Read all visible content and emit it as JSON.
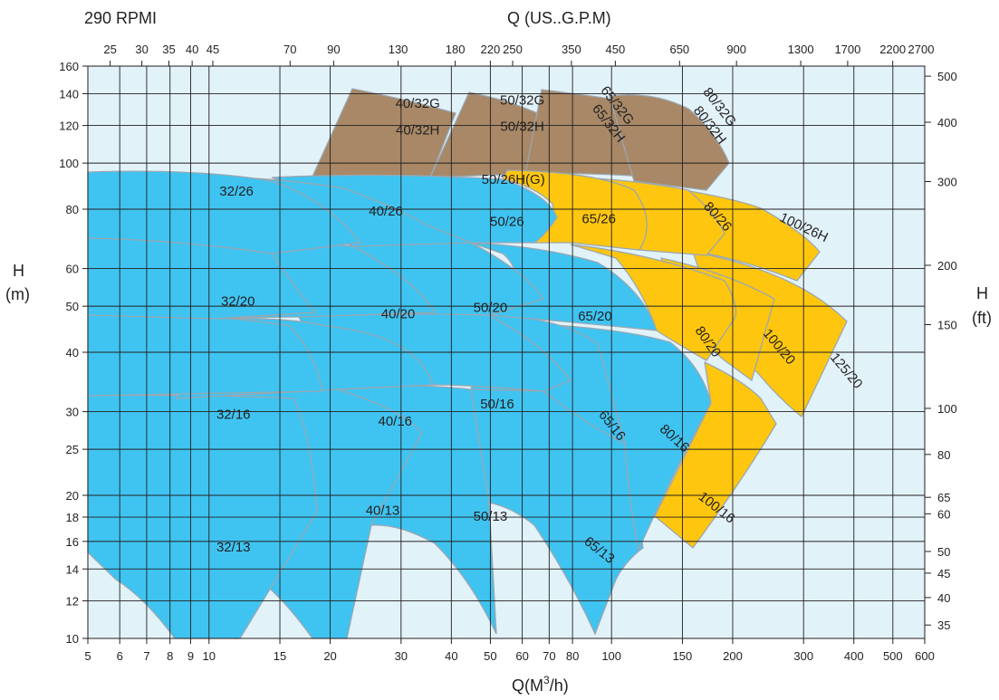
{
  "header": {
    "speed_label": "290 RPMI",
    "top_axis_title": "Q (US..G.P.M)"
  },
  "axes": {
    "left_unit": "H",
    "left_unit_sub": "(m)",
    "right_unit": "H",
    "right_unit_sub": "(ft)",
    "bottom_title_prefix": "Q(M",
    "bottom_title_sup": "3",
    "bottom_title_suffix": "/h)"
  },
  "colors": {
    "plot_bg": "#e2f2f9",
    "grid": "#231f20",
    "blue_zone": "#3fc4f1",
    "yellow_zone": "#fec60f",
    "brown_zone": "#a88866",
    "zone_edge": "#9aa7b2"
  },
  "chart_data": {
    "type": "area",
    "title": "290 RPMI",
    "xlabel": "Q(M3/h)",
    "ylabel": "H (m)",
    "x_scale": "log",
    "y_scale": "log",
    "xlim": [
      5,
      600
    ],
    "ylim": [
      10,
      160
    ],
    "x_ticks": [
      5,
      6,
      7,
      8,
      9,
      10,
      15,
      20,
      30,
      40,
      50,
      60,
      70,
      80,
      100,
      150,
      200,
      300,
      400,
      500,
      600
    ],
    "y_ticks": [
      10,
      12,
      14,
      16,
      18,
      20,
      25,
      30,
      40,
      50,
      60,
      80,
      100,
      120,
      140,
      160
    ],
    "top_axis": {
      "label": "Q (US..G.P.M)",
      "ticks": [
        {
          "label": "25",
          "m3h": 5.68
        },
        {
          "label": "30",
          "m3h": 6.81
        },
        {
          "label": "35",
          "m3h": 7.95
        },
        {
          "label": "40",
          "m3h": 9.08
        },
        {
          "label": "45",
          "m3h": 10.22
        },
        {
          "label": "70",
          "m3h": 15.9
        },
        {
          "label": "90",
          "m3h": 20.4
        },
        {
          "label": "130",
          "m3h": 29.5
        },
        {
          "label": "180",
          "m3h": 40.9
        },
        {
          "label": "220",
          "m3h": 50.0
        },
        {
          "label": "250",
          "m3h": 56.8
        },
        {
          "label": "350",
          "m3h": 79.5
        },
        {
          "label": "450",
          "m3h": 102.2
        },
        {
          "label": "650",
          "m3h": 147.6
        },
        {
          "label": "900",
          "m3h": 204.4
        },
        {
          "label": "1300",
          "m3h": 295.2
        },
        {
          "label": "1700",
          "m3h": 386.1
        },
        {
          "label": "2200",
          "m3h": 499.6
        },
        {
          "label": "2700",
          "m3h": 613.2
        }
      ]
    },
    "right_axis": {
      "label": "H (ft)",
      "ticks": [
        {
          "label": "35",
          "m": 10.67
        },
        {
          "label": "40",
          "m": 12.19
        },
        {
          "label": "45",
          "m": 13.72
        },
        {
          "label": "50",
          "m": 15.24
        },
        {
          "label": "60",
          "m": 18.29
        },
        {
          "label": "65",
          "m": 19.81
        },
        {
          "label": "80",
          "m": 24.38
        },
        {
          "label": "100",
          "m": 30.48
        },
        {
          "label": "150",
          "m": 45.72
        },
        {
          "label": "200",
          "m": 60.96
        },
        {
          "label": "300",
          "m": 91.44
        },
        {
          "label": "400",
          "m": 121.9
        },
        {
          "label": "500",
          "m": 152.4
        }
      ]
    },
    "series": [
      {
        "name": "32/13",
        "color": "blue",
        "label_at": [
          11.5,
          15.5
        ],
        "label_rot": 0
      },
      {
        "name": "40/13",
        "color": "blue",
        "label_at": [
          27,
          18.5
        ],
        "label_rot": 0
      },
      {
        "name": "50/13",
        "color": "blue",
        "label_at": [
          50,
          18
        ],
        "label_rot": 0
      },
      {
        "name": "65/13",
        "color": "blue",
        "label_at": [
          93,
          15.3
        ],
        "label_rot": 38
      },
      {
        "name": "32/16",
        "color": "blue",
        "label_at": [
          11.5,
          29.5
        ],
        "label_rot": 0
      },
      {
        "name": "40/16",
        "color": "blue",
        "label_at": [
          29,
          28.5
        ],
        "label_rot": 0
      },
      {
        "name": "50/16",
        "color": "blue",
        "label_at": [
          52,
          31
        ],
        "label_rot": 0
      },
      {
        "name": "65/16",
        "color": "blue",
        "label_at": [
          100,
          28
        ],
        "label_rot": 52
      },
      {
        "name": "80/16",
        "color": "blue",
        "label_at": [
          143,
          26.3
        ],
        "label_rot": 42
      },
      {
        "name": "100/16",
        "color": "yellow",
        "label_at": [
          182,
          18.8
        ],
        "label_rot": 38
      },
      {
        "name": "32/20",
        "color": "blue",
        "label_at": [
          11.8,
          51
        ],
        "label_rot": 0
      },
      {
        "name": "40/20",
        "color": "blue",
        "label_at": [
          29.5,
          48
        ],
        "label_rot": 0
      },
      {
        "name": "50/20",
        "color": "blue",
        "label_at": [
          50,
          49.5
        ],
        "label_rot": 0
      },
      {
        "name": "65/20",
        "color": "blue",
        "label_at": [
          91,
          47.5
        ],
        "label_rot": 0
      },
      {
        "name": "80/20",
        "color": "yellow",
        "label_at": [
          173,
          42
        ],
        "label_rot": 55
      },
      {
        "name": "100/20",
        "color": "yellow",
        "label_at": [
          260,
          41
        ],
        "label_rot": 50
      },
      {
        "name": "125/20",
        "color": "yellow",
        "label_at": [
          382,
          36.5
        ],
        "label_rot": 50
      },
      {
        "name": "32/26",
        "color": "blue",
        "label_at": [
          11.7,
          87
        ],
        "label_rot": 0
      },
      {
        "name": "40/26",
        "color": "blue",
        "label_at": [
          27.5,
          79
        ],
        "label_rot": 0
      },
      {
        "name": "50/26",
        "color": "blue",
        "label_at": [
          55,
          75
        ],
        "label_rot": 0
      },
      {
        "name": "50/26H(G)",
        "color": "blue",
        "label_at": [
          57,
          92
        ],
        "label_rot": 0
      },
      {
        "name": "65/26",
        "color": "yellow",
        "label_at": [
          93,
          76
        ],
        "label_rot": 0
      },
      {
        "name": "80/26",
        "color": "yellow",
        "label_at": [
          183,
          77
        ],
        "label_rot": 48
      },
      {
        "name": "100/26H",
        "color": "yellow",
        "label_at": [
          300,
          73
        ],
        "label_rot": 25
      },
      {
        "name": "40/32G",
        "color": "brown",
        "label_at": [
          33,
          133
        ],
        "label_rot": 0
      },
      {
        "name": "40/32H",
        "color": "brown",
        "label_at": [
          33,
          117
        ],
        "label_rot": 0
      },
      {
        "name": "50/32G",
        "color": "brown",
        "label_at": [
          60,
          135
        ],
        "label_rot": 0
      },
      {
        "name": "50/32H",
        "color": "brown",
        "label_at": [
          60,
          119
        ],
        "label_rot": 0
      },
      {
        "name": "65/32G",
        "color": "brown",
        "label_at": [
          103,
          132
        ],
        "label_rot": 52
      },
      {
        "name": "65/32H",
        "color": "brown",
        "label_at": [
          98,
          121
        ],
        "label_rot": 52
      },
      {
        "name": "80/32G",
        "color": "brown",
        "label_at": [
          185,
          131
        ],
        "label_rot": 52
      },
      {
        "name": "80/32H",
        "color": "brown",
        "label_at": [
          175,
          120
        ],
        "label_rot": 52
      }
    ]
  }
}
